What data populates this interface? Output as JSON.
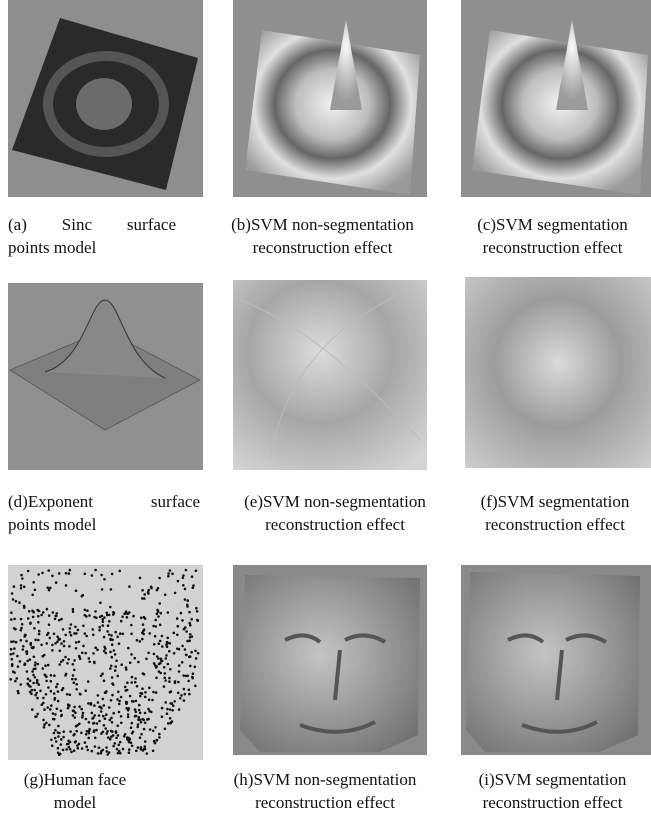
{
  "figure": {
    "panels": [
      {
        "caption": [
          "(a) Sinc surface",
          "points model"
        ]
      },
      {
        "caption": [
          "(b)SVM non-segmentation",
          "reconstruction effect"
        ]
      },
      {
        "caption": [
          "(c)SVM segmentation",
          "reconstruction effect"
        ]
      },
      {
        "caption": [
          "(d)Exponent surface",
          "points model"
        ]
      },
      {
        "caption": [
          "(e)SVM non-segmentation",
          "reconstruction effect"
        ]
      },
      {
        "caption": [
          "(f)SVM segmentation",
          "reconstruction effect"
        ]
      },
      {
        "caption": [
          "(g)Human face",
          "model"
        ]
      },
      {
        "caption": [
          "(h)SVM non-segmentation",
          "reconstruction effect"
        ]
      },
      {
        "caption": [
          "(i)SVM segmentation",
          "reconstruction effect"
        ]
      }
    ]
  }
}
